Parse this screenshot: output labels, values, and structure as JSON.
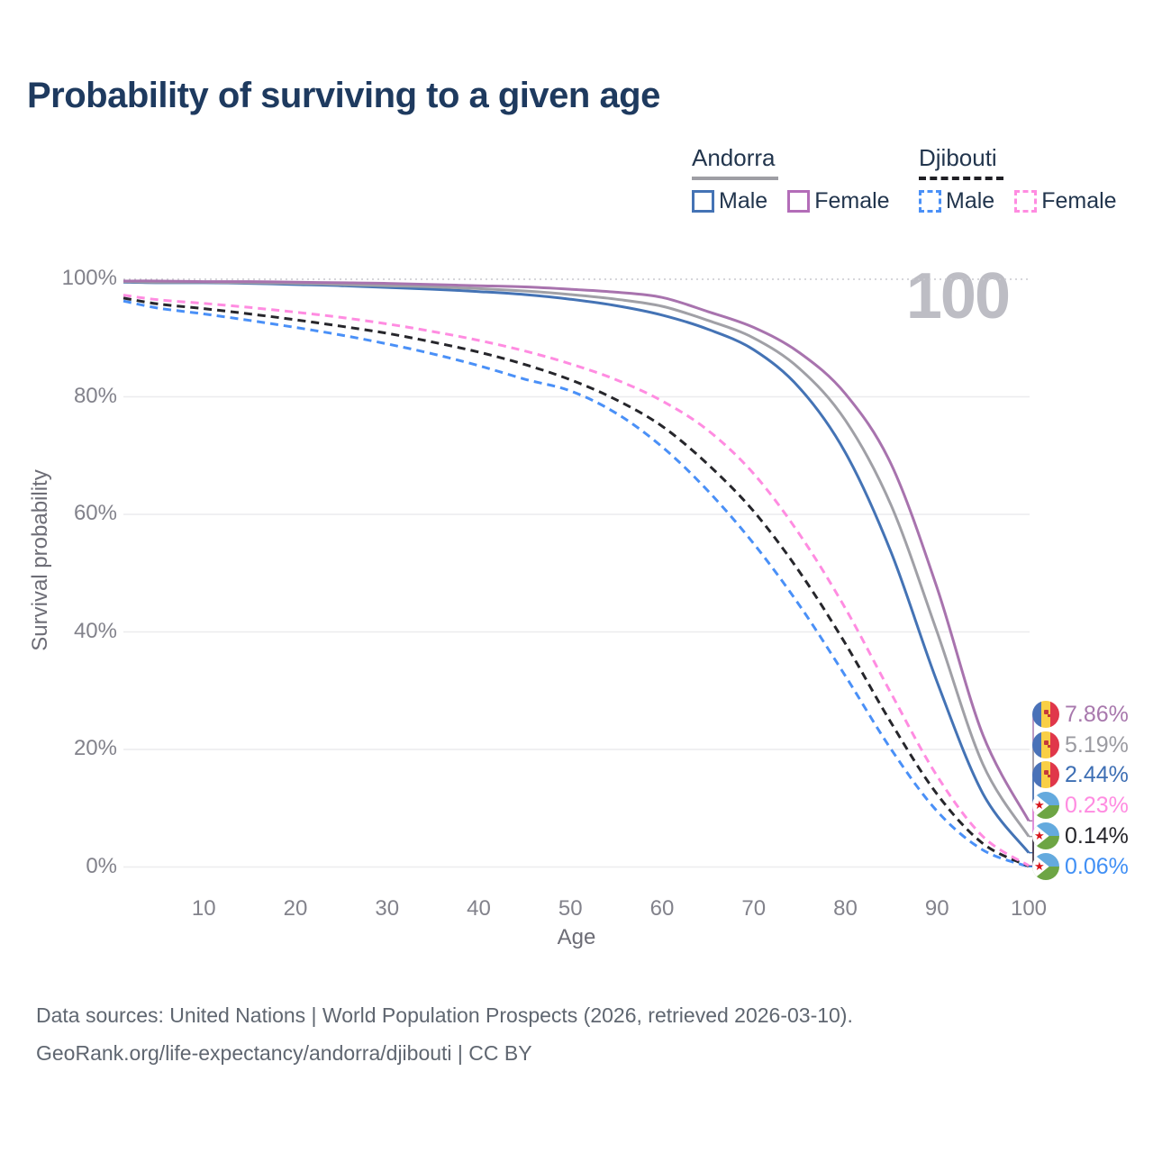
{
  "page": {
    "title": "Probability of surviving to a given age",
    "watermark": "100",
    "footer_line1": "Data sources: United Nations | World Population Prospects (2026, retrieved 2026-03-10).",
    "footer_line2": "GeoRank.org/life-expectancy/andorra/djibouti | CC BY"
  },
  "legend": {
    "groups": [
      {
        "name": "Andorra",
        "rule_style": "solid",
        "rule_color": "#9e9ea4",
        "items": [
          {
            "label": "Male",
            "color": "#4473b5",
            "dashed": false
          },
          {
            "label": "Female",
            "color": "#b36db8",
            "dashed": false
          }
        ]
      },
      {
        "name": "Djibouti",
        "rule_style": "dashed",
        "rule_color": "#1f1f24",
        "items": [
          {
            "label": "Male",
            "color": "#4a90f7",
            "dashed": true
          },
          {
            "label": "Female",
            "color": "#ff8ce1",
            "dashed": true
          }
        ]
      }
    ]
  },
  "chart_data": {
    "type": "line",
    "title": "Probability of surviving to a given age",
    "xlabel": "Age",
    "ylabel": "Survival probability",
    "xlim": [
      0,
      100
    ],
    "ylim": [
      0,
      100
    ],
    "grid": "horizontal",
    "legend_position": "top-right",
    "hover_age_watermark": "100",
    "x": [
      0,
      5,
      10,
      15,
      20,
      25,
      30,
      35,
      40,
      45,
      50,
      55,
      60,
      65,
      70,
      75,
      80,
      85,
      90,
      95,
      100
    ],
    "x_ticks": [
      "10",
      "20",
      "30",
      "40",
      "50",
      "60",
      "70",
      "80",
      "90",
      "100"
    ],
    "y_ticks": [
      "0%",
      "20%",
      "40%",
      "60%",
      "80%",
      "100%"
    ],
    "y_tick_values": [
      0,
      20,
      40,
      60,
      80,
      100
    ],
    "series": [
      {
        "name": "Andorra Female",
        "country": "andorra",
        "sex": "female",
        "color": "#a873ae",
        "label_color": "#a878ad",
        "dashed": false,
        "end_label": "7.86%",
        "values": [
          99.7,
          99.7,
          99.6,
          99.6,
          99.5,
          99.4,
          99.3,
          99.1,
          98.9,
          98.7,
          98.3,
          97.8,
          96.9,
          94.5,
          91.8,
          87.5,
          80.5,
          68.5,
          47.5,
          22.5,
          7.86
        ]
      },
      {
        "name": "Andorra Both sexes",
        "country": "andorra",
        "sex": "all",
        "color": "#a0a0a6",
        "label_color": "#9b9ba1",
        "dashed": false,
        "end_label": "5.19%",
        "values": [
          99.6,
          99.5,
          99.5,
          99.4,
          99.3,
          99.1,
          98.9,
          98.7,
          98.4,
          98.0,
          97.4,
          96.6,
          95.4,
          93.0,
          90.0,
          84.8,
          76.0,
          61.5,
          40.0,
          17.5,
          5.19
        ]
      },
      {
        "name": "Andorra Male",
        "country": "andorra",
        "sex": "male",
        "color": "#4473b5",
        "label_color": "#3e6fb4",
        "dashed": false,
        "end_label": "2.44%",
        "values": [
          99.5,
          99.4,
          99.4,
          99.3,
          99.1,
          98.9,
          98.6,
          98.3,
          97.9,
          97.4,
          96.6,
          95.5,
          93.9,
          91.5,
          88.0,
          81.5,
          70.5,
          53.5,
          31.5,
          12.5,
          2.44
        ]
      },
      {
        "name": "Djibouti Female",
        "country": "djibouti",
        "sex": "female",
        "color": "#ff8ce1",
        "label_color": "#ff8ce1",
        "dashed": true,
        "end_label": "0.23%",
        "values": [
          97.3,
          96.5,
          95.9,
          95.2,
          94.4,
          93.5,
          92.4,
          91.1,
          89.6,
          87.8,
          85.6,
          82.9,
          79.3,
          74.3,
          66.9,
          56.6,
          44.0,
          29.5,
          15.5,
          5.2,
          0.23
        ]
      },
      {
        "name": "Djibouti Both sexes",
        "country": "djibouti",
        "sex": "all",
        "color": "#26262b",
        "label_color": "#26262b",
        "dashed": true,
        "end_label": "0.14%",
        "values": [
          96.8,
          95.8,
          95.0,
          94.1,
          93.1,
          92.0,
          90.8,
          89.3,
          87.6,
          85.5,
          82.9,
          79.5,
          75.0,
          68.5,
          60.5,
          50.2,
          38.0,
          24.5,
          12.4,
          4.0,
          0.14
        ]
      },
      {
        "name": "Djibouti Male",
        "country": "djibouti",
        "sex": "male",
        "color": "#4a90f7",
        "label_color": "#4190f5",
        "dashed": true,
        "end_label": "0.06%",
        "values": [
          96.3,
          95.1,
          94.1,
          93.0,
          91.8,
          90.5,
          89.0,
          87.3,
          85.3,
          83.0,
          81.0,
          77.2,
          71.5,
          64.0,
          55.0,
          44.5,
          32.5,
          20.0,
          9.5,
          2.9,
          0.06
        ]
      }
    ]
  }
}
